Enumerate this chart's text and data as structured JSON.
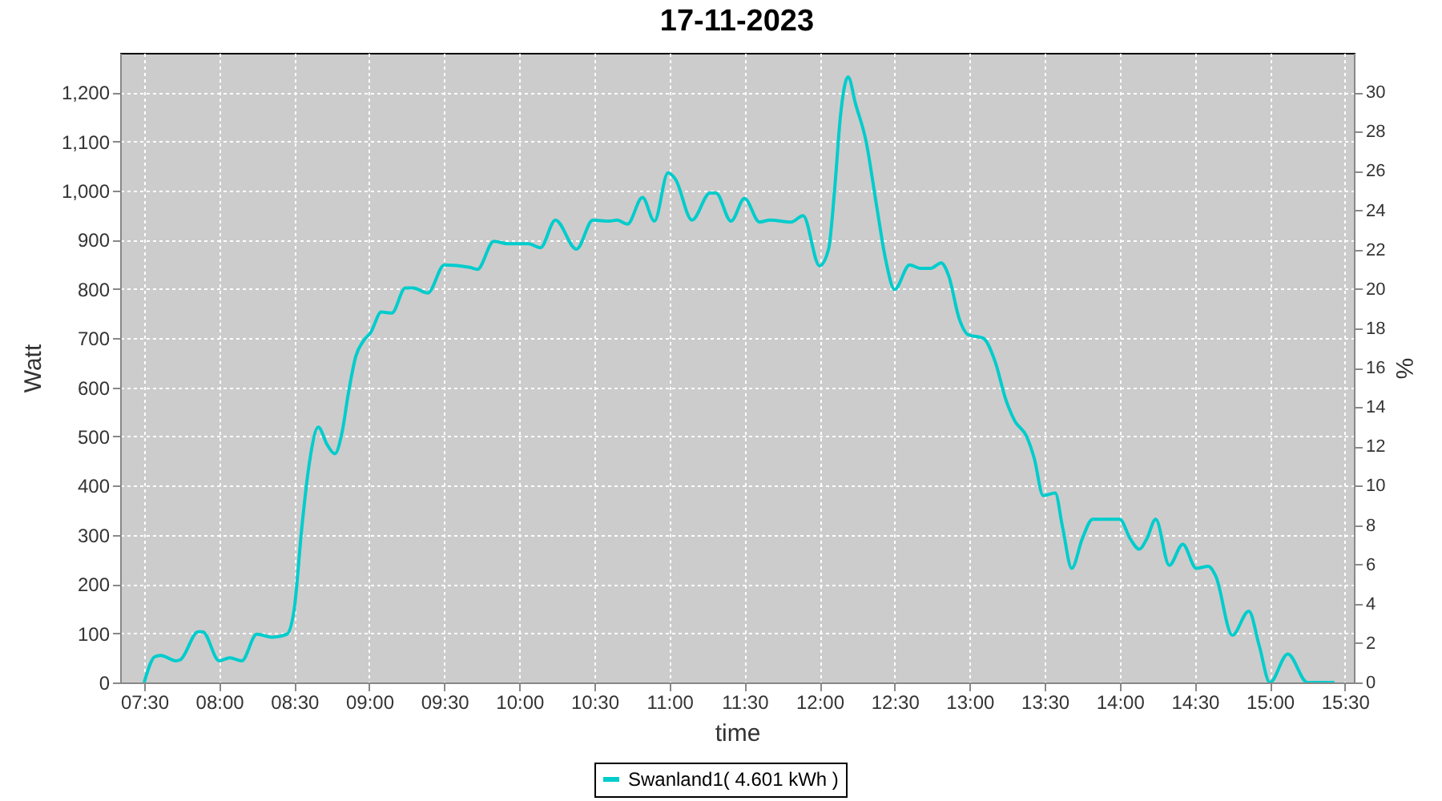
{
  "chart_data": {
    "type": "line",
    "title": "17-11-2023",
    "xlabel": "time",
    "ylabel": "Watt",
    "y2label": "%",
    "xlim": [
      7.34,
      15.56
    ],
    "ylim": [
      0,
      1280
    ],
    "y2lim": [
      0,
      32
    ],
    "xticks": [
      {
        "value": 7.5,
        "label": "07:30"
      },
      {
        "value": 8,
        "label": "08:00"
      },
      {
        "value": 8.5,
        "label": "08:30"
      },
      {
        "value": 9,
        "label": "09:00"
      },
      {
        "value": 9.5,
        "label": "09:30"
      },
      {
        "value": 10,
        "label": "10:00"
      },
      {
        "value": 10.5,
        "label": "10:30"
      },
      {
        "value": 11,
        "label": "11:00"
      },
      {
        "value": 11.5,
        "label": "11:30"
      },
      {
        "value": 12,
        "label": "12:00"
      },
      {
        "value": 12.5,
        "label": "12:30"
      },
      {
        "value": 13,
        "label": "13:00"
      },
      {
        "value": 13.5,
        "label": "13:30"
      },
      {
        "value": 14,
        "label": "14:00"
      },
      {
        "value": 14.5,
        "label": "14:30"
      },
      {
        "value": 15,
        "label": "15:00"
      },
      {
        "value": 15.5,
        "label": "15:30"
      }
    ],
    "yticks": [
      0,
      100,
      200,
      300,
      400,
      500,
      600,
      700,
      800,
      900,
      {
        "value": 1000,
        "label": "1,000"
      },
      {
        "value": 1100,
        "label": "1,100"
      },
      {
        "value": 1200,
        "label": "1,200"
      }
    ],
    "y2ticks": [
      0,
      2,
      4,
      6,
      8,
      10,
      12,
      14,
      16,
      18,
      20,
      22,
      24,
      26,
      28,
      30
    ],
    "grid": true,
    "legend": "bottom",
    "line_style": "solid",
    "x": [
      7.5,
      7.57,
      7.61,
      7.71,
      7.74,
      7.86,
      7.89,
      8.0,
      8.07,
      8.15,
      8.25,
      8.35,
      8.45,
      8.5,
      8.55,
      8.6,
      8.66,
      8.72,
      8.77,
      8.82,
      8.86,
      8.91,
      8.96,
      9.01,
      9.08,
      9.15,
      9.24,
      9.29,
      9.39,
      9.5,
      9.67,
      9.72,
      9.83,
      9.92,
      10.06,
      10.14,
      10.24,
      10.38,
      10.49,
      10.6,
      10.65,
      10.72,
      10.82,
      10.9,
      10.99,
      11.04,
      11.15,
      11.27,
      11.31,
      11.41,
      11.5,
      11.6,
      11.67,
      11.81,
      11.89,
      12.0,
      12.06,
      12.1,
      12.14,
      12.19,
      12.24,
      12.31,
      12.38,
      12.44,
      12.5,
      12.6,
      12.67,
      12.74,
      12.81,
      12.86,
      12.93,
      12.99,
      13.09,
      13.17,
      13.24,
      13.3,
      13.38,
      13.43,
      13.49,
      13.57,
      13.62,
      13.68,
      13.75,
      13.82,
      14.0,
      14.07,
      14.13,
      14.18,
      14.24,
      14.33,
      14.42,
      14.51,
      14.59,
      14.64,
      14.75,
      14.86,
      14.93,
      15.0,
      15.12,
      15.25,
      15.43
    ],
    "series": [
      {
        "name": "Swanland1( 4.601 kWh )",
        "color": "#00cccc",
        "values": [
          0,
          52,
          55,
          44,
          46,
          103,
          103,
          44,
          50,
          44,
          98,
          92,
          98,
          150,
          314,
          445,
          519,
          483,
          465,
          511,
          587,
          663,
          694,
          712,
          753,
          751,
          802,
          802,
          792,
          849,
          844,
          840,
          897,
          892,
          892,
          884,
          940,
          881,
          940,
          938,
          940,
          932,
          986,
          938,
          1036,
          1023,
          940,
          995,
          995,
          938,
          984,
          936,
          940,
          936,
          949,
          847,
          881,
          1001,
          1154,
          1231,
          1176,
          1100,
          969,
          860,
          799,
          849,
          842,
          842,
          853,
          827,
          740,
          707,
          700,
          652,
          576,
          532,
          500,
          456,
          380,
          385,
          314,
          232,
          292,
          332,
          332,
          292,
          271,
          292,
          332,
          238,
          281,
          232,
          236,
          216,
          96,
          145,
          74,
          0,
          58,
          0,
          0
        ]
      }
    ]
  }
}
